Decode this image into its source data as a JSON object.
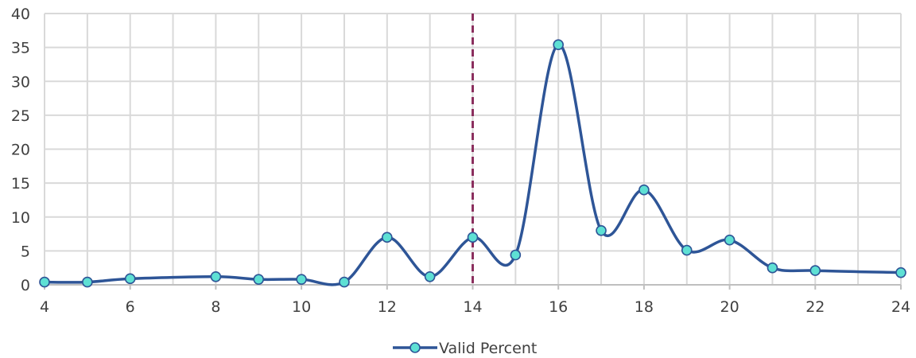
{
  "chart_data": {
    "type": "line",
    "title": "",
    "xlabel": "",
    "ylabel": "",
    "xlim": [
      4,
      24
    ],
    "ylim": [
      0,
      40
    ],
    "x_ticks": [
      4,
      6,
      8,
      10,
      12,
      14,
      16,
      18,
      20,
      22,
      24
    ],
    "y_ticks": [
      0,
      5,
      10,
      15,
      20,
      25,
      30,
      35,
      40
    ],
    "grid": true,
    "smooth": true,
    "legend_position": "bottom",
    "reference_line": {
      "x": 14,
      "style": "dashed",
      "color": "#8b2f5e"
    },
    "series": [
      {
        "name": "Valid Percent",
        "line_color": "#2e5597",
        "marker_color": "#5ee0d4",
        "x": [
          4,
          5,
          6,
          8,
          9,
          10,
          11,
          12,
          13,
          14,
          15,
          16,
          17,
          18,
          19,
          20,
          21,
          22,
          24
        ],
        "y": [
          0.4,
          0.4,
          0.9,
          1.2,
          0.8,
          0.8,
          0.4,
          7.0,
          1.2,
          7.0,
          4.4,
          35.4,
          8.0,
          14.0,
          5.1,
          6.6,
          2.5,
          2.1,
          1.8
        ]
      }
    ]
  }
}
